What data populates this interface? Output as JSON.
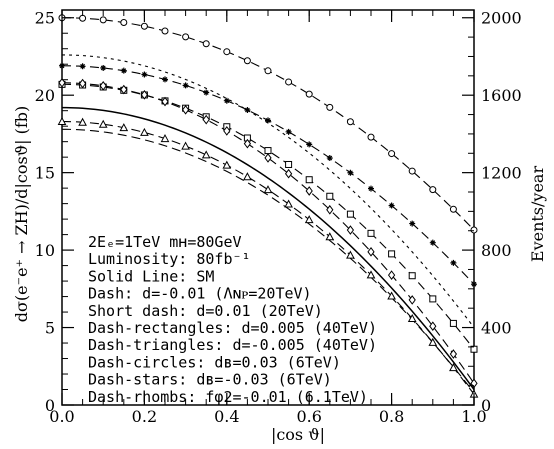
{
  "chart_data": {
    "type": "line",
    "xlabel": "|cos ϑ|",
    "ylabel": "dσ(e⁻e⁺ → ZH)/d|cosϑ|   (fb)",
    "y2label": "Events/year",
    "xlim": [
      0.0,
      1.0
    ],
    "ylim": [
      0,
      25.5
    ],
    "y2lim": [
      0,
      2040
    ],
    "x_ticks": [
      "0.0",
      "0.2",
      "0.4",
      "0.6",
      "0.8",
      "1.0"
    ],
    "y_ticks": [
      "0",
      "5",
      "10",
      "15",
      "20",
      "25"
    ],
    "y2_ticks": [
      "0",
      "400",
      "800",
      "1200",
      "1600",
      "2000"
    ],
    "legend": [
      "2Eₑ=1TeV  mʜ=80GeV",
      "Luminosity: 80fb⁻¹",
      "Solid Line: SM",
      "Dash: d=-0.01 (Λɴᴘ=20TeV)",
      "Short dash: d=0.01 (20TeV)",
      "Dash-rectangles: d=0.005 (40TeV)",
      "Dash-triangles: d=-0.005 (40TeV)",
      "Dash-circles: dʙ=0.03 (6TeV)",
      "Dash-stars: dʙ=-0.03 (6TeV)",
      "Dash-rhombs: fφ2=-0.01 (6.1TeV)"
    ],
    "series": [
      {
        "y0": 19.2,
        "y1": 1.0,
        "style": "solid",
        "marker": "none"
      },
      {
        "y0": 17.8,
        "y1": 0.8,
        "style": "dash",
        "marker": "none"
      },
      {
        "y0": 22.6,
        "y1": 5.0,
        "style": "shortdash",
        "marker": "none"
      },
      {
        "y0": 20.7,
        "y1": 3.6,
        "style": "dash",
        "marker": "square"
      },
      {
        "y0": 18.3,
        "y1": 0.7,
        "style": "dash",
        "marker": "triangle"
      },
      {
        "y0": 25.0,
        "y1": 11.3,
        "style": "dash",
        "marker": "circle"
      },
      {
        "y0": 21.9,
        "y1": 7.8,
        "style": "dash",
        "marker": "star"
      },
      {
        "y0": 20.8,
        "y1": 1.4,
        "style": "dash",
        "marker": "rhomb"
      }
    ]
  }
}
